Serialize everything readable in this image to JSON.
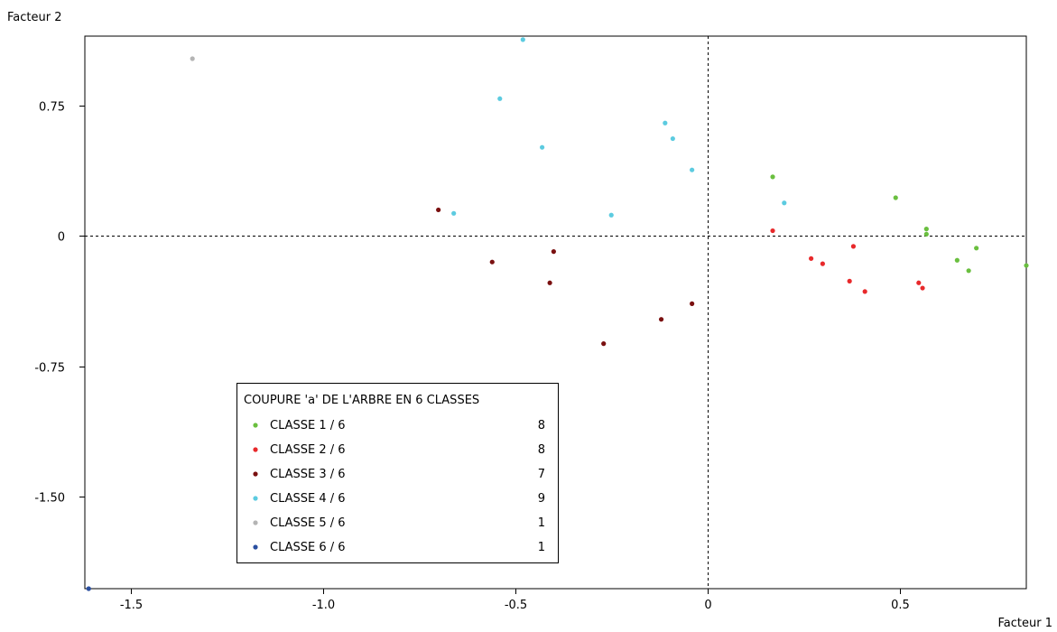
{
  "chart_data": {
    "type": "scatter",
    "xlabel": "Facteur 1",
    "ylabel": "Facteur 2",
    "xlim": [
      -1.62,
      0.83
    ],
    "ylim": [
      -2.03,
      1.15
    ],
    "x_ticks": [
      "-1.5",
      "-1.0",
      "-0.5",
      "0",
      "0.5"
    ],
    "x_tick_values": [
      -1.5,
      -1.0,
      -0.5,
      0,
      0.5
    ],
    "y_ticks": [
      "0.75",
      "0",
      "-0.75",
      "-1.50"
    ],
    "y_tick_values": [
      0.75,
      0,
      -0.75,
      -1.5
    ],
    "reference_lines": {
      "x": 0,
      "y": 0,
      "style": "dashed"
    },
    "legend": {
      "title": "COUPURE 'a' DE L'ARBRE EN  6 CLASSES",
      "placement": "bottom-left",
      "entries": [
        {
          "label": "CLASSE  1 / 6",
          "count": "8",
          "color": "#6abf3f"
        },
        {
          "label": "CLASSE  2 / 6",
          "count": "8",
          "color": "#e8292b"
        },
        {
          "label": "CLASSE  3 / 6",
          "count": "7",
          "color": "#7a1010"
        },
        {
          "label": "CLASSE  4 / 6",
          "count": "9",
          "color": "#5ccbe0"
        },
        {
          "label": "CLASSE  5 / 6",
          "count": "1",
          "color": "#b4b4b4"
        },
        {
          "label": "CLASSE  6 / 6",
          "count": "1",
          "color": "#2a4fa0"
        }
      ]
    },
    "series": [
      {
        "name": "CLASSE  1 / 6",
        "color": "#6abf3f",
        "points": [
          [
            0.17,
            0.34
          ],
          [
            0.49,
            0.22
          ],
          [
            0.57,
            0.04
          ],
          [
            0.57,
            0.01
          ],
          [
            0.7,
            -0.07
          ],
          [
            0.65,
            -0.14
          ],
          [
            0.68,
            -0.2
          ],
          [
            0.83,
            -0.17
          ]
        ]
      },
      {
        "name": "CLASSE  2 / 6",
        "color": "#e8292b",
        "points": [
          [
            0.17,
            0.03
          ],
          [
            0.38,
            -0.06
          ],
          [
            0.27,
            -0.13
          ],
          [
            0.3,
            -0.16
          ],
          [
            0.37,
            -0.26
          ],
          [
            0.41,
            -0.32
          ],
          [
            0.55,
            -0.27
          ],
          [
            0.56,
            -0.3
          ]
        ]
      },
      {
        "name": "CLASSE  3 / 6",
        "color": "#7a1010",
        "points": [
          [
            -0.7,
            0.15
          ],
          [
            -0.56,
            -0.15
          ],
          [
            -0.4,
            -0.09
          ],
          [
            -0.41,
            -0.27
          ],
          [
            -0.12,
            -0.48
          ],
          [
            -0.04,
            -0.39
          ],
          [
            -0.27,
            -0.62
          ]
        ]
      },
      {
        "name": "CLASSE  4 / 6",
        "color": "#5ccbe0",
        "points": [
          [
            -0.48,
            1.13
          ],
          [
            -0.54,
            0.79
          ],
          [
            -0.43,
            0.51
          ],
          [
            -0.11,
            0.65
          ],
          [
            -0.09,
            0.56
          ],
          [
            -0.04,
            0.38
          ],
          [
            0.2,
            0.19
          ],
          [
            -0.66,
            0.13
          ],
          [
            -0.25,
            0.12
          ]
        ]
      },
      {
        "name": "CLASSE  5 / 6",
        "color": "#b4b4b4",
        "points": [
          [
            -1.34,
            1.02
          ]
        ]
      },
      {
        "name": "CLASSE  6 / 6",
        "color": "#2a4fa0",
        "points": [
          [
            -1.61,
            -2.03
          ]
        ]
      }
    ]
  }
}
